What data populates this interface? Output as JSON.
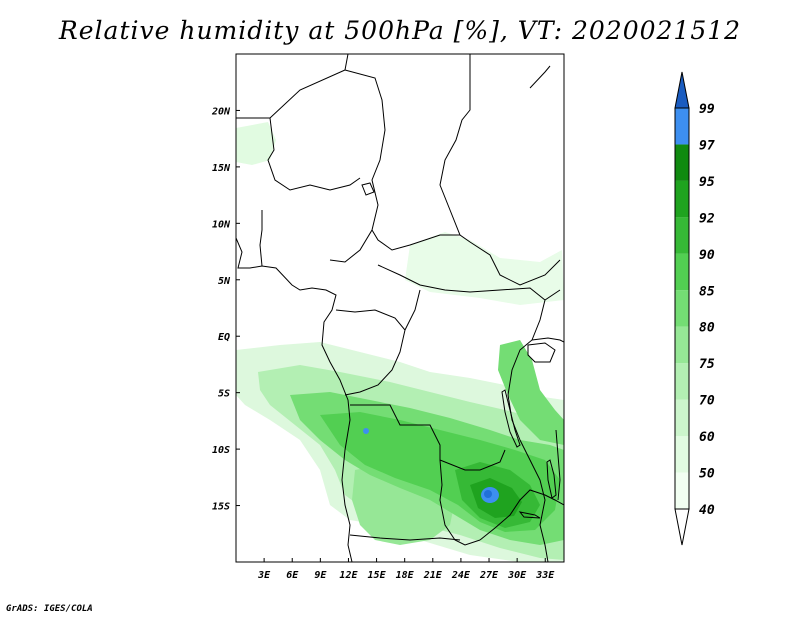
{
  "title": "Relative humidity at 500hPa [%], VT: 2020021512",
  "credit": "GrADS: IGES/COLA",
  "map": {
    "region": "Central Africa",
    "lon_range": [
      0,
      35
    ],
    "lat_range": [
      -20,
      25
    ],
    "lat_ticks": [
      {
        "value": 20,
        "label": "20N"
      },
      {
        "value": 15,
        "label": "15N"
      },
      {
        "value": 10,
        "label": "10N"
      },
      {
        "value": 5,
        "label": "5N"
      },
      {
        "value": 0,
        "label": "EQ"
      },
      {
        "value": -5,
        "label": "5S"
      },
      {
        "value": -10,
        "label": "10S"
      },
      {
        "value": -15,
        "label": "15S"
      }
    ],
    "lon_ticks": [
      {
        "value": 3,
        "label": "3E"
      },
      {
        "value": 6,
        "label": "6E"
      },
      {
        "value": 9,
        "label": "9E"
      },
      {
        "value": 12,
        "label": "12E"
      },
      {
        "value": 15,
        "label": "15E"
      },
      {
        "value": 18,
        "label": "18E"
      },
      {
        "value": 21,
        "label": "21E"
      },
      {
        "value": 24,
        "label": "24E"
      },
      {
        "value": 27,
        "label": "27E"
      },
      {
        "value": 30,
        "label": "30E"
      },
      {
        "value": 33,
        "label": "33E"
      }
    ]
  },
  "colorbar": {
    "levels": [
      {
        "label": "40",
        "color": "#f2fff2"
      },
      {
        "label": "50",
        "color": "#e1fbe1"
      },
      {
        "label": "60",
        "color": "#ccf5cc"
      },
      {
        "label": "70",
        "color": "#b3efb3"
      },
      {
        "label": "75",
        "color": "#96e796"
      },
      {
        "label": "80",
        "color": "#74dd74"
      },
      {
        "label": "85",
        "color": "#52cf52"
      },
      {
        "label": "90",
        "color": "#36b936"
      },
      {
        "label": "92",
        "color": "#1fa31f"
      },
      {
        "label": "95",
        "color": "#108a10"
      },
      {
        "label": "97",
        "color": "#3d8ff0"
      },
      {
        "label": "99",
        "color": "#2170d8"
      }
    ],
    "top_color": "#1a5cc0",
    "bottom_color": "#ffffff"
  }
}
